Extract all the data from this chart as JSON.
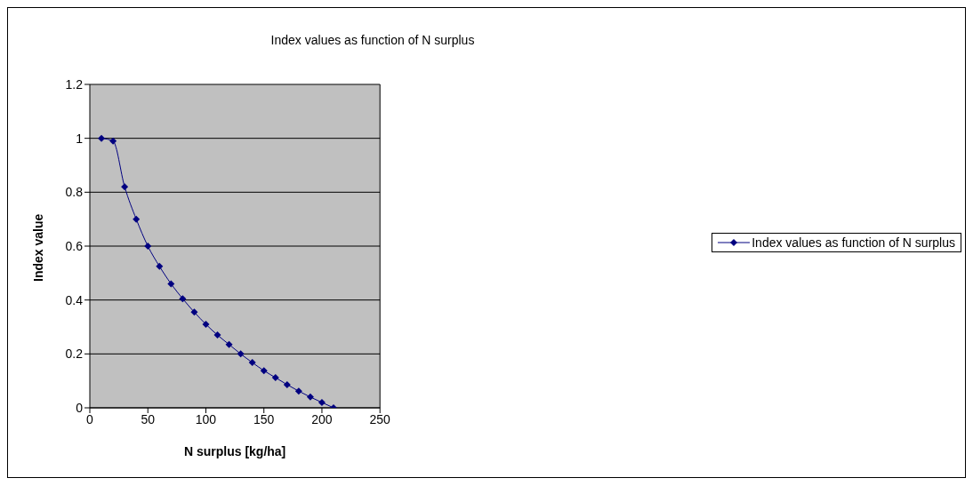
{
  "chart_data": {
    "type": "line",
    "title": "Index values as function of N surplus",
    "xlabel": "N surplus [kg/ha]",
    "ylabel": "Index value",
    "x": [
      10,
      20,
      30,
      40,
      50,
      60,
      70,
      80,
      90,
      100,
      110,
      120,
      130,
      140,
      150,
      160,
      170,
      180,
      190,
      200,
      210
    ],
    "series": [
      {
        "name": "Index values as function of N surplus",
        "color": "#000080",
        "values": [
          1.0,
          0.99,
          0.82,
          0.7,
          0.6,
          0.525,
          0.46,
          0.405,
          0.355,
          0.31,
          0.27,
          0.235,
          0.2,
          0.168,
          0.138,
          0.112,
          0.086,
          0.062,
          0.04,
          0.02,
          0.0
        ]
      }
    ],
    "xlim": [
      0,
      250
    ],
    "xticks": [
      0,
      50,
      100,
      150,
      200,
      250
    ],
    "ylim": [
      0,
      1.2
    ],
    "yticks": [
      0,
      0.2,
      0.4,
      0.6,
      0.8,
      1,
      1.2
    ],
    "grid": "y",
    "legend": "right",
    "marker": "diamond",
    "line_style": "solid"
  }
}
